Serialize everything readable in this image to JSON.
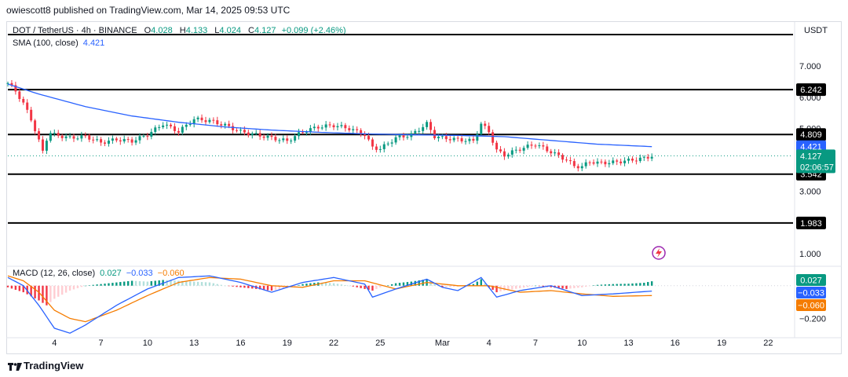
{
  "header": {
    "published": "owiescott8 published on TradingView.com, Mar 14, 2025 09:53 UTC"
  },
  "legend": {
    "symbol": "DOT / TetherUS · 4h · BINANCE",
    "open_label": "O",
    "open": "4.028",
    "high_label": "H",
    "high": "4.133",
    "low_label": "L",
    "low": "4.024",
    "close_label": "C",
    "close": "4.127",
    "change": "+0.099 (+2.46%)"
  },
  "sma": {
    "label": "SMA (100, close)",
    "value": "4.421"
  },
  "macd": {
    "label": "MACD (12, 26, close)",
    "hist": "0.027",
    "macd": "−0.033",
    "signal": "−0.060"
  },
  "currency": "USDT",
  "countdown": "02:06:57",
  "brand": "TradingView",
  "colors": {
    "up": "#089981",
    "down": "#f23645",
    "up_light": "#b2dfdb",
    "down_light": "#ffcdd2",
    "sma": "#2962ff",
    "macd_line": "#2962ff",
    "signal_line": "#f57c00",
    "level": "#000000"
  },
  "chart_data": {
    "type": "candlestick",
    "price_axis": {
      "ticks": [
        "7.000",
        "6.000",
        "5.000",
        "3.000",
        "1.000"
      ],
      "values": [
        7,
        6,
        5,
        3,
        1
      ],
      "ylim": [
        0.7,
        7.6
      ]
    },
    "macd_axis": {
      "ticks": [
        "−0.200"
      ],
      "values": [
        -0.2
      ],
      "ylim": [
        -0.27,
        0.09
      ]
    },
    "x_axis": {
      "ticks": [
        "4",
        "7",
        "10",
        "13",
        "16",
        "19",
        "22",
        "25",
        "Mar",
        "4",
        "7",
        "10",
        "13",
        "16",
        "19",
        "22"
      ],
      "tick_days": [
        4,
        7,
        10,
        13,
        16,
        19,
        22,
        25,
        29,
        32,
        35,
        38,
        41,
        44,
        47,
        50
      ],
      "day_range": [
        1.0,
        51.6
      ]
    },
    "levels": [
      {
        "value": 6.242,
        "label": "6.242"
      },
      {
        "value": 4.809,
        "label": "4.809"
      },
      {
        "value": 3.542,
        "label": "3.542"
      },
      {
        "value": 1.983,
        "label": "1.983"
      }
    ],
    "price_tags": [
      {
        "value": 4.421,
        "label": "4.421",
        "series": "sma"
      },
      {
        "value": 4.127,
        "label": "4.127",
        "series": "last"
      }
    ],
    "close_path": {
      "days": [
        1,
        1.5,
        2,
        2.5,
        3,
        3.3,
        3.6,
        4,
        5,
        6,
        7,
        8,
        9,
        10,
        11,
        12,
        13,
        14,
        15,
        16,
        17,
        18,
        19,
        20,
        21,
        22,
        23,
        24,
        24.5,
        25,
        26,
        27,
        28,
        28.5,
        29,
        30,
        31,
        31.5,
        32,
        32.5,
        33,
        34,
        35,
        36,
        37,
        37.5,
        38,
        38.5,
        39,
        40,
        41,
        42,
        42.5
      ],
      "values": [
        6.45,
        6.2,
        5.8,
        5.3,
        4.6,
        4.2,
        4.9,
        4.8,
        4.7,
        4.75,
        4.55,
        4.65,
        4.6,
        4.8,
        5.15,
        4.9,
        5.3,
        5.25,
        5.1,
        4.9,
        4.8,
        4.7,
        4.6,
        4.9,
        5.05,
        5.1,
        5.0,
        4.8,
        4.4,
        4.35,
        4.7,
        4.8,
        5.15,
        4.75,
        4.7,
        4.65,
        4.6,
        5.15,
        4.9,
        4.3,
        4.15,
        4.35,
        4.5,
        4.25,
        4.0,
        3.8,
        3.78,
        3.95,
        3.9,
        3.92,
        3.98,
        4.05,
        4.127
      ]
    },
    "sma_path": {
      "days": [
        1,
        3,
        6,
        9,
        12,
        15,
        18,
        21,
        24,
        27,
        30,
        33,
        36,
        39,
        42.5
      ],
      "values": [
        6.42,
        6.1,
        5.7,
        5.4,
        5.2,
        5.05,
        4.95,
        4.88,
        4.83,
        4.8,
        4.78,
        4.74,
        4.62,
        4.5,
        4.421
      ]
    },
    "macd_hist": {
      "days": [
        1,
        2,
        3,
        3.5,
        4,
        5,
        6,
        7,
        8,
        9,
        10,
        11,
        12,
        13,
        14,
        15,
        16,
        17,
        18,
        19,
        20,
        21,
        22,
        23,
        24,
        24.5,
        25,
        26,
        27,
        28,
        28.5,
        29,
        30,
        31,
        31.5,
        32,
        32.5,
        33,
        34,
        35,
        36,
        37,
        38,
        39,
        40,
        41,
        42,
        42.5
      ],
      "values": [
        -0.01,
        -0.04,
        -0.09,
        -0.12,
        -0.08,
        -0.03,
        0.0,
        0.01,
        0.02,
        0.03,
        0.025,
        0.035,
        0.03,
        0.025,
        0.02,
        0.0,
        -0.01,
        -0.02,
        -0.03,
        -0.015,
        0.01,
        0.02,
        0.015,
        0.0,
        -0.02,
        -0.03,
        -0.01,
        0.015,
        0.025,
        0.04,
        0.01,
        -0.01,
        -0.005,
        0.01,
        0.04,
        -0.01,
        -0.04,
        -0.03,
        -0.015,
        0.0,
        -0.01,
        -0.02,
        -0.01,
        0.005,
        0.01,
        0.012,
        0.018,
        0.027
      ]
    },
    "macd_line": {
      "days": [
        1,
        2,
        3,
        4,
        5,
        6,
        8,
        10,
        12,
        14,
        16,
        18,
        20,
        22,
        24,
        24.5,
        26,
        28,
        29,
        30,
        31.5,
        32.5,
        34,
        36,
        38,
        40,
        42.5
      ],
      "values": [
        0.05,
        0.0,
        -0.12,
        -0.26,
        -0.29,
        -0.24,
        -0.12,
        -0.02,
        0.05,
        0.06,
        0.02,
        -0.04,
        0.02,
        0.05,
        0.01,
        -0.07,
        -0.02,
        0.04,
        -0.01,
        -0.03,
        0.05,
        -0.07,
        -0.03,
        0.0,
        -0.06,
        -0.05,
        -0.033
      ]
    },
    "signal_line": {
      "days": [
        1,
        2,
        3,
        4,
        5,
        6,
        8,
        10,
        12,
        14,
        16,
        18,
        20,
        22,
        24,
        26,
        28,
        30,
        32,
        34,
        36,
        38,
        40,
        42.5
      ],
      "values": [
        0.06,
        0.03,
        -0.04,
        -0.15,
        -0.2,
        -0.22,
        -0.15,
        -0.06,
        0.02,
        0.05,
        0.04,
        0.0,
        -0.01,
        0.03,
        0.03,
        -0.02,
        0.02,
        0.0,
        0.0,
        -0.04,
        -0.03,
        -0.05,
        -0.065,
        -0.06
      ]
    }
  }
}
